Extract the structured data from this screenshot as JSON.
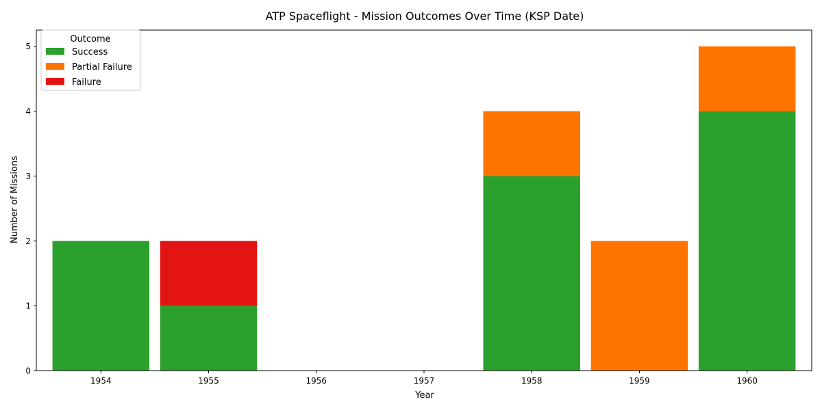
{
  "chart_data": {
    "type": "bar",
    "stacked": true,
    "title": "ATP Spaceflight - Mission Outcomes Over Time (KSP Date)",
    "xlabel": "Year",
    "ylabel": "Number of Missions",
    "categories": [
      "1954",
      "1955",
      "1956",
      "1957",
      "1958",
      "1959",
      "1960"
    ],
    "ylim": [
      0,
      5.25
    ],
    "yticks": [
      0,
      1,
      2,
      3,
      4,
      5
    ],
    "grid": false,
    "legend": {
      "title": "Outcome",
      "placement": "top-left"
    },
    "series": [
      {
        "name": "Success",
        "color": "#2ca02c",
        "values": [
          2,
          1,
          0,
          0,
          3,
          0,
          4
        ]
      },
      {
        "name": "Partial Failure",
        "color": "#ff7400",
        "values": [
          0,
          0,
          0,
          0,
          1,
          2,
          1
        ]
      },
      {
        "name": "Failure",
        "color": "#e31414",
        "values": [
          0,
          1,
          0,
          0,
          0,
          0,
          0
        ]
      }
    ]
  }
}
